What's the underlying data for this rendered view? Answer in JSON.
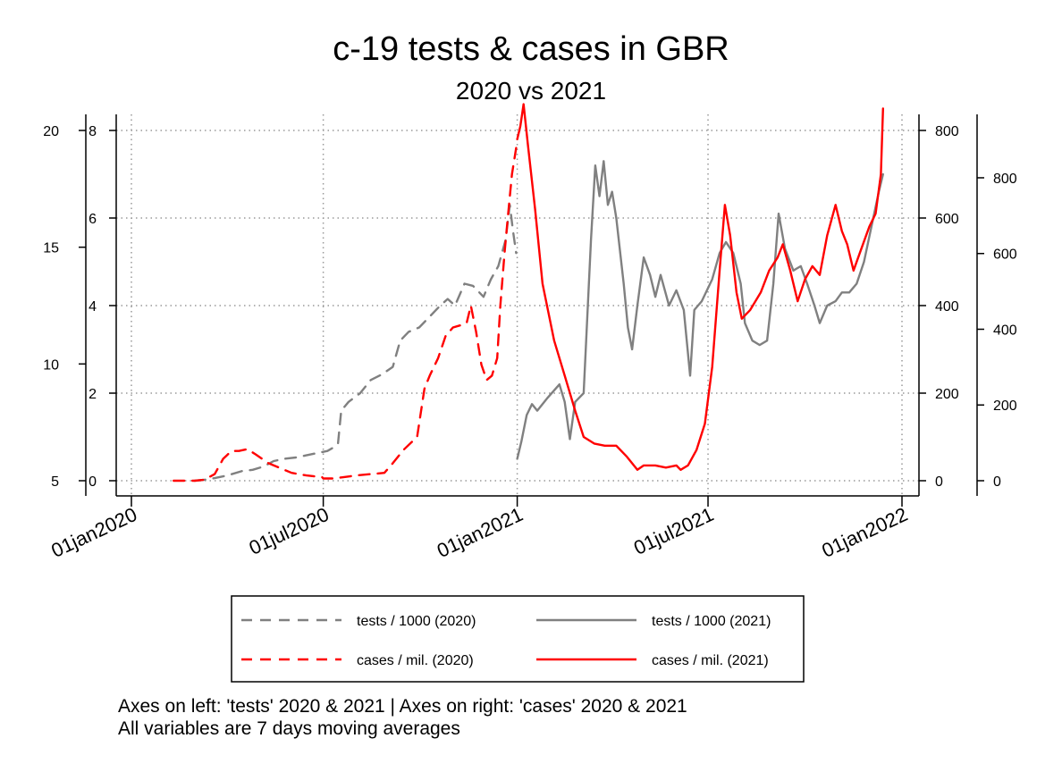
{
  "chart_data": {
    "type": "line",
    "title": "c-19 tests & cases in GBR",
    "subtitle": "2020 vs 2021",
    "x_ticks": [
      "01jan2020",
      "01jul2020",
      "01jan2021",
      "01jul2021",
      "01jan2022"
    ],
    "xlim": [
      "2020-01-01",
      "2022-01-01"
    ],
    "grid": true,
    "legend_position": "bottom",
    "axes": {
      "left_outer": {
        "ticks": [
          5,
          10,
          15,
          20
        ],
        "range": [
          5,
          20
        ]
      },
      "left_inner": {
        "ticks": [
          0,
          2,
          4,
          6,
          8
        ],
        "range": [
          0,
          8
        ]
      },
      "right_inner": {
        "ticks": [
          0,
          200,
          400,
          600,
          800
        ],
        "range": [
          0,
          800
        ]
      },
      "right_outer": {
        "ticks": [
          0,
          200,
          400,
          600,
          800
        ],
        "range": [
          0,
          925
        ]
      }
    },
    "series": [
      {
        "name": "tests / 1000 (2020)",
        "color": "#808080",
        "dashed": true,
        "axis": "left_inner",
        "points": [
          [
            "2020-03-01",
            0.0
          ],
          [
            "2020-03-10",
            0.02
          ],
          [
            "2020-03-20",
            0.06
          ],
          [
            "2020-04-01",
            0.12
          ],
          [
            "2020-04-15",
            0.22
          ],
          [
            "2020-04-25",
            0.25
          ],
          [
            "2020-05-05",
            0.32
          ],
          [
            "2020-05-15",
            0.45
          ],
          [
            "2020-05-25",
            0.5
          ],
          [
            "2020-06-05",
            0.53
          ],
          [
            "2020-06-15",
            0.58
          ],
          [
            "2020-06-25",
            0.63
          ],
          [
            "2020-07-05",
            0.68
          ],
          [
            "2020-07-10",
            0.75
          ],
          [
            "2020-07-15",
            0.85
          ],
          [
            "2020-07-18",
            1.6
          ],
          [
            "2020-07-25",
            1.8
          ],
          [
            "2020-08-05",
            2.0
          ],
          [
            "2020-08-15",
            2.3
          ],
          [
            "2020-08-25",
            2.42
          ],
          [
            "2020-09-05",
            2.6
          ],
          [
            "2020-09-12",
            3.2
          ],
          [
            "2020-09-20",
            3.4
          ],
          [
            "2020-09-30",
            3.5
          ],
          [
            "2020-10-10",
            3.75
          ],
          [
            "2020-10-20",
            4.0
          ],
          [
            "2020-10-27",
            4.15
          ],
          [
            "2020-11-03",
            4.0
          ],
          [
            "2020-11-12",
            4.5
          ],
          [
            "2020-11-20",
            4.45
          ],
          [
            "2020-11-30",
            4.2
          ],
          [
            "2020-12-07",
            4.6
          ],
          [
            "2020-12-14",
            4.9
          ],
          [
            "2020-12-21",
            5.5
          ],
          [
            "2020-12-25",
            6.3
          ],
          [
            "2020-12-28",
            5.7
          ],
          [
            "2020-12-31",
            5.2
          ]
        ]
      },
      {
        "name": "tests / 1000 (2021)",
        "color": "#808080",
        "dashed": false,
        "axis": "left_inner",
        "points": [
          [
            "2021-01-01",
            0.5
          ],
          [
            "2021-01-05",
            0.9
          ],
          [
            "2021-01-10",
            1.5
          ],
          [
            "2021-01-15",
            1.75
          ],
          [
            "2021-01-20",
            1.6
          ],
          [
            "2021-01-30",
            1.9
          ],
          [
            "2021-02-10",
            2.2
          ],
          [
            "2021-02-15",
            1.8
          ],
          [
            "2021-02-20",
            0.95
          ],
          [
            "2021-02-25",
            1.8
          ],
          [
            "2021-03-05",
            2.0
          ],
          [
            "2021-03-12",
            5.5
          ],
          [
            "2021-03-16",
            7.2
          ],
          [
            "2021-03-20",
            6.5
          ],
          [
            "2021-03-24",
            7.3
          ],
          [
            "2021-03-28",
            6.3
          ],
          [
            "2021-04-01",
            6.6
          ],
          [
            "2021-04-05",
            6.0
          ],
          [
            "2021-04-12",
            4.5
          ],
          [
            "2021-04-16",
            3.5
          ],
          [
            "2021-04-20",
            3.0
          ],
          [
            "2021-04-25",
            4.0
          ],
          [
            "2021-05-01",
            5.1
          ],
          [
            "2021-05-07",
            4.7
          ],
          [
            "2021-05-12",
            4.2
          ],
          [
            "2021-05-17",
            4.7
          ],
          [
            "2021-05-25",
            4.0
          ],
          [
            "2021-06-01",
            4.35
          ],
          [
            "2021-06-08",
            3.9
          ],
          [
            "2021-06-14",
            2.4
          ],
          [
            "2021-06-18",
            3.9
          ],
          [
            "2021-06-25",
            4.1
          ],
          [
            "2021-07-05",
            4.6
          ],
          [
            "2021-07-12",
            5.2
          ],
          [
            "2021-07-18",
            5.45
          ],
          [
            "2021-07-25",
            5.2
          ],
          [
            "2021-08-01",
            4.5
          ],
          [
            "2021-08-05",
            3.6
          ],
          [
            "2021-08-12",
            3.2
          ],
          [
            "2021-08-19",
            3.1
          ],
          [
            "2021-08-26",
            3.2
          ],
          [
            "2021-09-01",
            4.5
          ],
          [
            "2021-09-06",
            6.1
          ],
          [
            "2021-09-12",
            5.3
          ],
          [
            "2021-09-20",
            4.8
          ],
          [
            "2021-09-27",
            4.9
          ],
          [
            "2021-10-03",
            4.5
          ],
          [
            "2021-10-10",
            4.0
          ],
          [
            "2021-10-15",
            3.6
          ],
          [
            "2021-10-22",
            4.0
          ],
          [
            "2021-10-30",
            4.1
          ],
          [
            "2021-11-05",
            4.3
          ],
          [
            "2021-11-12",
            4.3
          ],
          [
            "2021-11-19",
            4.5
          ],
          [
            "2021-11-26",
            5.0
          ],
          [
            "2021-12-03",
            5.8
          ],
          [
            "2021-12-10",
            6.6
          ],
          [
            "2021-12-14",
            7.0
          ]
        ]
      },
      {
        "name": "cases / mil. (2020)",
        "color": "#ff0000",
        "dashed": true,
        "axis": "right_inner",
        "points": [
          [
            "2020-02-10",
            0
          ],
          [
            "2020-02-20",
            0
          ],
          [
            "2020-03-01",
            0
          ],
          [
            "2020-03-10",
            2
          ],
          [
            "2020-03-20",
            15
          ],
          [
            "2020-03-28",
            50
          ],
          [
            "2020-04-05",
            68
          ],
          [
            "2020-04-12",
            68
          ],
          [
            "2020-04-20",
            72
          ],
          [
            "2020-04-28",
            60
          ],
          [
            "2020-05-10",
            40
          ],
          [
            "2020-05-20",
            30
          ],
          [
            "2020-06-01",
            18
          ],
          [
            "2020-06-15",
            12
          ],
          [
            "2020-06-30",
            8
          ],
          [
            "2020-07-01",
            5
          ],
          [
            "2020-07-10",
            5
          ],
          [
            "2020-07-20",
            8
          ],
          [
            "2020-08-01",
            12
          ],
          [
            "2020-08-15",
            15
          ],
          [
            "2020-08-28",
            18
          ],
          [
            "2020-09-05",
            40
          ],
          [
            "2020-09-15",
            70
          ],
          [
            "2020-09-28",
            100
          ],
          [
            "2020-10-05",
            210
          ],
          [
            "2020-10-10",
            240
          ],
          [
            "2020-10-18",
            280
          ],
          [
            "2020-10-25",
            330
          ],
          [
            "2020-11-01",
            350
          ],
          [
            "2020-11-08",
            355
          ],
          [
            "2020-11-14",
            360
          ],
          [
            "2020-11-18",
            400
          ],
          [
            "2020-11-23",
            340
          ],
          [
            "2020-11-28",
            265
          ],
          [
            "2020-12-03",
            230
          ],
          [
            "2020-12-08",
            240
          ],
          [
            "2020-12-13",
            280
          ],
          [
            "2020-12-16",
            400
          ],
          [
            "2020-12-20",
            520
          ],
          [
            "2020-12-23",
            600
          ],
          [
            "2020-12-27",
            700
          ],
          [
            "2020-12-31",
            760
          ]
        ]
      },
      {
        "name": "cases / mil. (2021)",
        "color": "#ff0000",
        "dashed": false,
        "axis": "right_inner",
        "points": [
          [
            "2021-01-01",
            780
          ],
          [
            "2021-01-04",
            810
          ],
          [
            "2021-01-07",
            860
          ],
          [
            "2021-01-11",
            770
          ],
          [
            "2021-01-18",
            620
          ],
          [
            "2021-01-25",
            450
          ],
          [
            "2021-02-05",
            320
          ],
          [
            "2021-02-15",
            240
          ],
          [
            "2021-02-25",
            160
          ],
          [
            "2021-03-05",
            100
          ],
          [
            "2021-03-15",
            85
          ],
          [
            "2021-03-25",
            80
          ],
          [
            "2021-04-05",
            80
          ],
          [
            "2021-04-15",
            55
          ],
          [
            "2021-04-25",
            25
          ],
          [
            "2021-05-01",
            35
          ],
          [
            "2021-05-12",
            35
          ],
          [
            "2021-05-22",
            30
          ],
          [
            "2021-06-01",
            35
          ],
          [
            "2021-06-05",
            25
          ],
          [
            "2021-06-12",
            35
          ],
          [
            "2021-06-20",
            70
          ],
          [
            "2021-06-28",
            130
          ],
          [
            "2021-07-05",
            260
          ],
          [
            "2021-07-12",
            480
          ],
          [
            "2021-07-17",
            630
          ],
          [
            "2021-07-22",
            560
          ],
          [
            "2021-07-28",
            430
          ],
          [
            "2021-08-02",
            370
          ],
          [
            "2021-08-10",
            390
          ],
          [
            "2021-08-20",
            430
          ],
          [
            "2021-08-28",
            480
          ],
          [
            "2021-09-05",
            510
          ],
          [
            "2021-09-10",
            540
          ],
          [
            "2021-09-17",
            480
          ],
          [
            "2021-09-24",
            410
          ],
          [
            "2021-10-01",
            460
          ],
          [
            "2021-10-08",
            490
          ],
          [
            "2021-10-15",
            470
          ],
          [
            "2021-10-22",
            560
          ],
          [
            "2021-10-30",
            630
          ],
          [
            "2021-11-05",
            570
          ],
          [
            "2021-11-10",
            540
          ],
          [
            "2021-11-16",
            480
          ],
          [
            "2021-11-22",
            520
          ],
          [
            "2021-12-01",
            580
          ],
          [
            "2021-12-07",
            610
          ],
          [
            "2021-12-12",
            700
          ],
          [
            "2021-12-14",
            850
          ]
        ]
      }
    ],
    "legend": [
      {
        "label": "tests / 1000 (2020)",
        "series": 0
      },
      {
        "label": "tests / 1000 (2021)",
        "series": 1
      },
      {
        "label": "cases / mil. (2020)",
        "series": 2
      },
      {
        "label": "cases / mil. (2021)",
        "series": 3
      }
    ],
    "footnote": [
      "Axes on left: 'tests' 2020 & 2021 | Axes on right: 'cases' 2020 & 2021",
      "All variables are 7 days moving averages"
    ]
  }
}
